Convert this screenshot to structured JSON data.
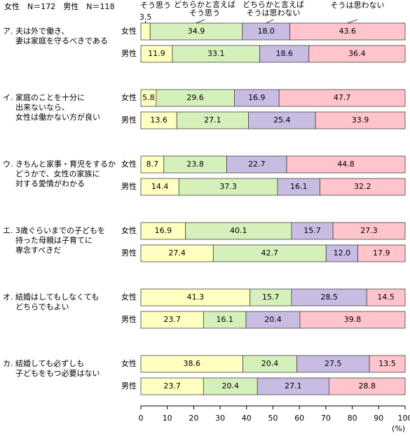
{
  "chart_data": {
    "type": "bar",
    "stacked": true,
    "orientation": "horizontal",
    "note": "女性　N＝172　男性　N＝118",
    "xlabel": "(%)",
    "xlim": [
      0,
      100
    ],
    "xticks": [
      0,
      10,
      20,
      30,
      40,
      50,
      60,
      70,
      80,
      90,
      100
    ],
    "categories": [
      "女性",
      "男性",
      "女性",
      "男性",
      "女性",
      "男性",
      "女性",
      "男性",
      "女性",
      "男性",
      "女性",
      "男性"
    ],
    "groups": [
      {
        "letter": "ア.",
        "label": [
          "夫は外で働き、",
          "妻は家庭を守るべきである"
        ]
      },
      {
        "letter": "イ.",
        "label": [
          "家庭のことを十分に",
          "出来ないなら、",
          "女性は働かない方が良い"
        ]
      },
      {
        "letter": "ウ.",
        "label": [
          "きちんと家事・育児をするか",
          "どうかで、女性の家族に",
          "対する愛情がわかる"
        ]
      },
      {
        "letter": "エ.",
        "label": [
          "3歳ぐらいまでの子どもを",
          "持った母親は子育てに",
          "専念すべきだ"
        ]
      },
      {
        "letter": "オ.",
        "label": [
          "結婚はしてもしなくても",
          "どちらでもよい"
        ]
      },
      {
        "letter": "カ.",
        "label": [
          "結婚しても必ずしも",
          "子どもをもつ必要はない"
        ]
      }
    ],
    "series": [
      {
        "name": [
          "そう思う"
        ],
        "color": "#ffffc0",
        "values": [
          3.5,
          11.9,
          5.8,
          13.6,
          8.7,
          14.4,
          16.9,
          27.4,
          41.3,
          23.7,
          38.6,
          23.7
        ]
      },
      {
        "name": [
          "どちらかと言えば",
          "そう思う"
        ],
        "color": "#d6f0bc",
        "values": [
          34.9,
          33.1,
          29.6,
          27.1,
          23.8,
          37.3,
          40.1,
          42.7,
          15.7,
          16.1,
          20.4,
          20.4
        ]
      },
      {
        "name": [
          "どちらかと言えば",
          "そうは思わない"
        ],
        "color": "#c9bce3",
        "values": [
          18.0,
          18.6,
          16.9,
          25.4,
          22.7,
          16.1,
          15.7,
          12.0,
          28.5,
          20.4,
          27.5,
          27.1
        ],
        "value_labels": [
          "18.0",
          "18.6",
          "16.9",
          "25.4",
          "22.7",
          "16.1",
          "15.7",
          "12.0",
          "28.5",
          "20.4",
          "27.5",
          "27.1"
        ]
      },
      {
        "name": [
          "そうは思わない"
        ],
        "color": "#ffc4cc",
        "values": [
          43.6,
          36.4,
          47.7,
          33.9,
          44.8,
          32.2,
          27.3,
          17.9,
          14.5,
          39.8,
          13.5,
          28.8
        ]
      }
    ]
  }
}
